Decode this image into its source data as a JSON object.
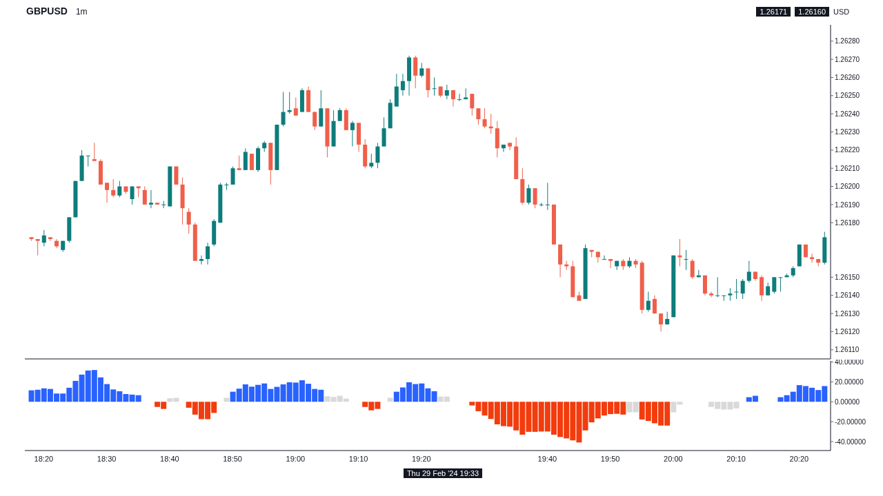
{
  "chart_data": [
    {
      "type": "candlestick",
      "title": "GBPUSD",
      "subtitle": "1m",
      "ylabel": "USD",
      "tick_labels": "y",
      "x": [
        "2024-02-29T18:18",
        "2024-02-29T18:19",
        "2024-02-29T18:20",
        "2024-02-29T18:21",
        "2024-02-29T18:22",
        "2024-02-29T18:23",
        "2024-02-29T18:24",
        "2024-02-29T18:25",
        "2024-02-29T18:26",
        "2024-02-29T18:27",
        "2024-02-29T18:28",
        "2024-02-29T18:29",
        "2024-02-29T18:30",
        "2024-02-29T18:31",
        "2024-02-29T18:32",
        "2024-02-29T18:33",
        "2024-02-29T18:34",
        "2024-02-29T18:35",
        "2024-02-29T18:36",
        "2024-02-29T18:37",
        "2024-02-29T18:38",
        "2024-02-29T18:39",
        "2024-02-29T18:40",
        "2024-02-29T18:41",
        "2024-02-29T18:42",
        "2024-02-29T18:43",
        "2024-02-29T18:44",
        "2024-02-29T18:45",
        "2024-02-29T18:46",
        "2024-02-29T18:47",
        "2024-02-29T18:48",
        "2024-02-29T18:49",
        "2024-02-29T18:50",
        "2024-02-29T18:51",
        "2024-02-29T18:52",
        "2024-02-29T18:53",
        "2024-02-29T18:54",
        "2024-02-29T18:55",
        "2024-02-29T18:56",
        "2024-02-29T18:57",
        "2024-02-29T18:58",
        "2024-02-29T18:59",
        "2024-02-29T19:00",
        "2024-02-29T19:01",
        "2024-02-29T19:02",
        "2024-02-29T19:03",
        "2024-02-29T19:04",
        "2024-02-29T19:05",
        "2024-02-29T19:06",
        "2024-02-29T19:07",
        "2024-02-29T19:08",
        "2024-02-29T19:09",
        "2024-02-29T19:10",
        "2024-02-29T19:11",
        "2024-02-29T19:12",
        "2024-02-29T19:13",
        "2024-02-29T19:14",
        "2024-02-29T19:15",
        "2024-02-29T19:16",
        "2024-02-29T19:17",
        "2024-02-29T19:18",
        "2024-02-29T19:19",
        "2024-02-29T19:20",
        "2024-02-29T19:21",
        "2024-02-29T19:22",
        "2024-02-29T19:23",
        "2024-02-29T19:24",
        "2024-02-29T19:25",
        "2024-02-29T19:26",
        "2024-02-29T19:27",
        "2024-02-29T19:28",
        "2024-02-29T19:29",
        "2024-02-29T19:30",
        "2024-02-29T19:31",
        "2024-02-29T19:32",
        "2024-02-29T19:33",
        "2024-02-29T19:34",
        "2024-02-29T19:35",
        "2024-02-29T19:36",
        "2024-02-29T19:37",
        "2024-02-29T19:38",
        "2024-02-29T19:39",
        "2024-02-29T19:40",
        "2024-02-29T19:41",
        "2024-02-29T19:42",
        "2024-02-29T19:43",
        "2024-02-29T19:44",
        "2024-02-29T19:45",
        "2024-02-29T19:46",
        "2024-02-29T19:47",
        "2024-02-29T19:48",
        "2024-02-29T19:49",
        "2024-02-29T19:50",
        "2024-02-29T19:51",
        "2024-02-29T19:52",
        "2024-02-29T19:53",
        "2024-02-29T19:54",
        "2024-02-29T19:55",
        "2024-02-29T19:56",
        "2024-02-29T19:57",
        "2024-02-29T19:58",
        "2024-02-29T19:59",
        "2024-02-29T20:00",
        "2024-02-29T20:01",
        "2024-02-29T20:02",
        "2024-02-29T20:03",
        "2024-02-29T20:04",
        "2024-02-29T20:05",
        "2024-02-29T20:06",
        "2024-02-29T20:07",
        "2024-02-29T20:08",
        "2024-02-29T20:09",
        "2024-02-29T20:10",
        "2024-02-29T20:11",
        "2024-02-29T20:12",
        "2024-02-29T20:13",
        "2024-02-29T20:14",
        "2024-02-29T20:15",
        "2024-02-29T20:16",
        "2024-02-29T20:17",
        "2024-02-29T20:18",
        "2024-02-29T20:19",
        "2024-02-29T20:20",
        "2024-02-29T20:21",
        "2024-02-29T20:22",
        "2024-02-29T20:23",
        "2024-02-29T20:24"
      ],
      "ohlc": [
        [
          1.26172,
          1.26172,
          1.2617,
          1.26171
        ],
        [
          1.26171,
          1.26171,
          1.26162,
          1.2617
        ],
        [
          1.26169,
          1.26176,
          1.26167,
          1.26173
        ],
        [
          1.26172,
          1.26172,
          1.2617,
          1.26171
        ],
        [
          1.2617,
          1.26171,
          1.26166,
          1.26167
        ],
        [
          1.26165,
          1.2617,
          1.26164,
          1.2617
        ],
        [
          1.2617,
          1.26183,
          1.26169,
          1.26183
        ],
        [
          1.26183,
          1.26203,
          1.26183,
          1.26203
        ],
        [
          1.26203,
          1.2622,
          1.26203,
          1.26217
        ],
        [
          1.26217,
          1.26217,
          1.26211,
          1.26217
        ],
        [
          1.26215,
          1.26224,
          1.26214,
          1.26214
        ],
        [
          1.26214,
          1.26215,
          1.26201,
          1.26201
        ],
        [
          1.26202,
          1.26202,
          1.26191,
          1.26198
        ],
        [
          1.26198,
          1.26204,
          1.26194,
          1.26195
        ],
        [
          1.26195,
          1.26203,
          1.26194,
          1.262
        ],
        [
          1.262,
          1.262,
          1.26196,
          1.26197
        ],
        [
          1.26193,
          1.262,
          1.2619,
          1.262
        ],
        [
          1.262,
          1.262,
          1.26194,
          1.26199
        ],
        [
          1.26198,
          1.262,
          1.2619,
          1.2619
        ],
        [
          1.2619,
          1.26198,
          1.26188,
          1.26191
        ],
        [
          1.26191,
          1.26191,
          1.2619,
          1.2619
        ],
        [
          1.2619,
          1.26192,
          1.26188,
          1.2619
        ],
        [
          1.26189,
          1.26211,
          1.26189,
          1.26211
        ],
        [
          1.26211,
          1.26211,
          1.26201,
          1.26201
        ],
        [
          1.26201,
          1.26205,
          1.26179,
          1.26188
        ],
        [
          1.26186,
          1.26188,
          1.26174,
          1.26179
        ],
        [
          1.26179,
          1.2618,
          1.26159,
          1.26159
        ],
        [
          1.26159,
          1.26162,
          1.26157,
          1.2616
        ],
        [
          1.2616,
          1.26169,
          1.26157,
          1.26167
        ],
        [
          1.26168,
          1.26182,
          1.26167,
          1.26181
        ],
        [
          1.2618,
          1.26202,
          1.2618,
          1.26201
        ],
        [
          1.26201,
          1.26202,
          1.26198,
          1.26201
        ],
        [
          1.26201,
          1.26211,
          1.26201,
          1.2621
        ],
        [
          1.2621,
          1.26217,
          1.26209,
          1.26209
        ],
        [
          1.26209,
          1.26221,
          1.26209,
          1.26219
        ],
        [
          1.26218,
          1.26218,
          1.26209,
          1.26209
        ],
        [
          1.26209,
          1.26222,
          1.26208,
          1.26221
        ],
        [
          1.26221,
          1.26225,
          1.26219,
          1.26224
        ],
        [
          1.26224,
          1.26224,
          1.26201,
          1.26209
        ],
        [
          1.26209,
          1.26234,
          1.26209,
          1.26234
        ],
        [
          1.26234,
          1.26252,
          1.26233,
          1.26241
        ],
        [
          1.26241,
          1.26252,
          1.2624,
          1.26242
        ],
        [
          1.26243,
          1.26249,
          1.26239,
          1.26239
        ],
        [
          1.26241,
          1.26254,
          1.26241,
          1.26253
        ],
        [
          1.26253,
          1.26255,
          1.26241,
          1.26241
        ],
        [
          1.26241,
          1.26241,
          1.26231,
          1.26233
        ],
        [
          1.26233,
          1.26253,
          1.26233,
          1.26243
        ],
        [
          1.26243,
          1.26243,
          1.26216,
          1.26222
        ],
        [
          1.26222,
          1.26242,
          1.26222,
          1.26236
        ],
        [
          1.26236,
          1.26243,
          1.26236,
          1.26242
        ],
        [
          1.26242,
          1.26243,
          1.26231,
          1.26231
        ],
        [
          1.26231,
          1.26236,
          1.26222,
          1.26235
        ],
        [
          1.26235,
          1.26235,
          1.26219,
          1.26223
        ],
        [
          1.26223,
          1.26226,
          1.2621,
          1.26211
        ],
        [
          1.26211,
          1.26218,
          1.2621,
          1.26213
        ],
        [
          1.26213,
          1.26224,
          1.2621,
          1.26222
        ],
        [
          1.26222,
          1.26238,
          1.26222,
          1.26232
        ],
        [
          1.26232,
          1.26248,
          1.26232,
          1.26246
        ],
        [
          1.26244,
          1.26262,
          1.26244,
          1.26255
        ],
        [
          1.26253,
          1.26262,
          1.2625,
          1.26258
        ],
        [
          1.26258,
          1.26272,
          1.2625,
          1.26271
        ],
        [
          1.26271,
          1.26272,
          1.26254,
          1.26261
        ],
        [
          1.26261,
          1.26268,
          1.2626,
          1.26265
        ],
        [
          1.26265,
          1.26265,
          1.26249,
          1.26253
        ],
        [
          1.26254,
          1.2626,
          1.2625,
          1.26254
        ],
        [
          1.26255,
          1.26255,
          1.26249,
          1.2625
        ],
        [
          1.2625,
          1.26256,
          1.26248,
          1.26253
        ],
        [
          1.26253,
          1.26253,
          1.26244,
          1.26248
        ],
        [
          1.26248,
          1.26251,
          1.26247,
          1.26248
        ],
        [
          1.26248,
          1.26254,
          1.26248,
          1.26249
        ],
        [
          1.26251,
          1.26251,
          1.26239,
          1.26243
        ],
        [
          1.26243,
          1.26243,
          1.26234,
          1.26237
        ],
        [
          1.26237,
          1.26243,
          1.26232,
          1.26233
        ],
        [
          1.26233,
          1.2624,
          1.26229,
          1.26232
        ],
        [
          1.26232,
          1.26236,
          1.26216,
          1.26221
        ],
        [
          1.26221,
          1.26223,
          1.26219,
          1.26223
        ],
        [
          1.26224,
          1.26224,
          1.2622,
          1.26222
        ],
        [
          1.26222,
          1.26227,
          1.26204,
          1.26204
        ],
        [
          1.26204,
          1.2621,
          1.2619,
          1.26191
        ],
        [
          1.26191,
          1.26201,
          1.2619,
          1.26199
        ],
        [
          1.26199,
          1.26199,
          1.26188,
          1.2619
        ],
        [
          1.2619,
          1.26191,
          1.26189,
          1.2619
        ],
        [
          1.2619,
          1.26202,
          1.26187,
          1.2619
        ],
        [
          1.2619,
          1.2619,
          1.26168,
          1.26168
        ],
        [
          1.26168,
          1.26168,
          1.2615,
          1.26157
        ],
        [
          1.26157,
          1.26159,
          1.26154,
          1.26156
        ],
        [
          1.26156,
          1.26159,
          1.26139,
          1.26139
        ],
        [
          1.2614,
          1.26142,
          1.26137,
          1.26137
        ],
        [
          1.26138,
          1.26168,
          1.26138,
          1.26166
        ],
        [
          1.26165,
          1.26165,
          1.26161,
          1.26164
        ],
        [
          1.26164,
          1.26164,
          1.26158,
          1.26161
        ],
        [
          1.2616,
          1.26162,
          1.2616,
          1.2616
        ],
        [
          1.2616,
          1.2616,
          1.26155,
          1.26159
        ],
        [
          1.26156,
          1.26159,
          1.26154,
          1.26159
        ],
        [
          1.26159,
          1.2616,
          1.26154,
          1.26156
        ],
        [
          1.26156,
          1.26161,
          1.26155,
          1.26159
        ],
        [
          1.26159,
          1.2616,
          1.26155,
          1.26157
        ],
        [
          1.26158,
          1.26159,
          1.2613,
          1.26132
        ],
        [
          1.26132,
          1.26142,
          1.26131,
          1.26137
        ],
        [
          1.26138,
          1.2614,
          1.2613,
          1.2613
        ],
        [
          1.2613,
          1.2613,
          1.2612,
          1.26124
        ],
        [
          1.26124,
          1.26131,
          1.26124,
          1.26127
        ],
        [
          1.26128,
          1.26162,
          1.26128,
          1.26162
        ],
        [
          1.26162,
          1.26171,
          1.26156,
          1.26161
        ],
        [
          1.2616,
          1.26165,
          1.26154,
          1.2616
        ],
        [
          1.26159,
          1.2616,
          1.26149,
          1.2615
        ],
        [
          1.2615,
          1.26154,
          1.2615,
          1.26151
        ],
        [
          1.26151,
          1.26151,
          1.2614,
          1.26141
        ],
        [
          1.26141,
          1.26142,
          1.26139,
          1.2614
        ],
        [
          1.2614,
          1.2615,
          1.26139,
          1.2614
        ],
        [
          1.2614,
          1.2614,
          1.26137,
          1.2614
        ],
        [
          1.2614,
          1.26144,
          1.26137,
          1.26141
        ],
        [
          1.26142,
          1.26149,
          1.26138,
          1.26142
        ],
        [
          1.26141,
          1.26149,
          1.26138,
          1.26148
        ],
        [
          1.26148,
          1.26159,
          1.26147,
          1.26153
        ],
        [
          1.26153,
          1.26153,
          1.26148,
          1.26149
        ],
        [
          1.2615,
          1.26151,
          1.26137,
          1.2614
        ],
        [
          1.2614,
          1.26147,
          1.2614,
          1.26145
        ],
        [
          1.26142,
          1.2615,
          1.26141,
          1.2615
        ],
        [
          1.2615,
          1.2615,
          1.26142,
          1.2615
        ],
        [
          1.2615,
          1.26152,
          1.2615,
          1.26151
        ],
        [
          1.26151,
          1.26156,
          1.2615,
          1.26155
        ],
        [
          1.26156,
          1.26168,
          1.26156,
          1.26168
        ],
        [
          1.26168,
          1.26168,
          1.26161,
          1.26161
        ],
        [
          1.26161,
          1.26163,
          1.26158,
          1.2616
        ],
        [
          1.2616,
          1.2616,
          1.26156,
          1.26158
        ],
        [
          1.26158,
          1.26175,
          1.26157,
          1.26172
        ]
      ],
      "colors": [
        "#ef5f4a",
        "#ef5f4a",
        "#0e7c7b",
        "#ef5f4a",
        "#ef5f4a",
        "#0e7c7b",
        "#0e7c7b",
        "#0e7c7b",
        "#0e7c7b",
        "#0e7c7b",
        "#ef5f4a",
        "#ef5f4a",
        "#ef5f4a",
        "#ef5f4a",
        "#0e7c7b",
        "#ef5f4a",
        "#0e7c7b",
        "#ef5f4a",
        "#ef5f4a",
        "#0e7c7b",
        "#ef5f4a",
        "#0e7c7b",
        "#0e7c7b",
        "#ef5f4a",
        "#ef5f4a",
        "#ef5f4a",
        "#ef5f4a",
        "#0e7c7b",
        "#0e7c7b",
        "#0e7c7b",
        "#0e7c7b",
        "#0e7c7b",
        "#0e7c7b",
        "#ef5f4a",
        "#0e7c7b",
        "#ef5f4a",
        "#0e7c7b",
        "#0e7c7b",
        "#ef5f4a",
        "#0e7c7b",
        "#0e7c7b",
        "#0e7c7b",
        "#ef5f4a",
        "#0e7c7b",
        "#ef5f4a",
        "#ef5f4a",
        "#0e7c7b",
        "#ef5f4a",
        "#0e7c7b",
        "#0e7c7b",
        "#ef5f4a",
        "#0e7c7b",
        "#ef5f4a",
        "#ef5f4a",
        "#0e7c7b",
        "#0e7c7b",
        "#0e7c7b",
        "#0e7c7b",
        "#0e7c7b",
        "#0e7c7b",
        "#0e7c7b",
        "#ef5f4a",
        "#0e7c7b",
        "#ef5f4a",
        "#0e7c7b",
        "#ef5f4a",
        "#0e7c7b",
        "#ef5f4a",
        "#0e7c7b",
        "#0e7c7b",
        "#ef5f4a",
        "#ef5f4a",
        "#ef5f4a",
        "#ef5f4a",
        "#ef5f4a",
        "#0e7c7b",
        "#ef5f4a",
        "#ef5f4a",
        "#ef5f4a",
        "#0e7c7b",
        "#ef5f4a",
        "#0e7c7b",
        "#0e7c7b",
        "#ef5f4a",
        "#ef5f4a",
        "#ef5f4a",
        "#ef5f4a",
        "#ef5f4a",
        "#0e7c7b",
        "#ef5f4a",
        "#ef5f4a",
        "#0e7c7b",
        "#ef5f4a",
        "#0e7c7b",
        "#ef5f4a",
        "#0e7c7b",
        "#ef5f4a",
        "#ef5f4a",
        "#0e7c7b",
        "#ef5f4a",
        "#ef5f4a",
        "#0e7c7b",
        "#0e7c7b",
        "#ef5f4a",
        "#0e7c7b",
        "#ef5f4a",
        "#0e7c7b",
        "#ef5f4a",
        "#ef5f4a",
        "#0e7c7b",
        "#0e7c7b",
        "#0e7c7b",
        "#0e7c7b",
        "#0e7c7b",
        "#0e7c7b",
        "#ef5f4a",
        "#ef5f4a",
        "#0e7c7b",
        "#0e7c7b",
        "#0e7c7b",
        "#0e7c7b",
        "#0e7c7b",
        "#0e7c7b",
        "#ef5f4a",
        "#ef5f4a",
        "#ef5f4a",
        "#0e7c7b"
      ],
      "xlim": [
        "2024-02-29T18:17",
        "2024-02-29T20:25"
      ],
      "ylim": [
        1.26105,
        1.26289
      ],
      "yticks": [
        {
          "value": 1.2611,
          "label": "1.26110"
        },
        {
          "value": 1.2612,
          "label": "1.26120"
        },
        {
          "value": 1.2613,
          "label": "1.26130"
        },
        {
          "value": 1.2614,
          "label": "1.26140"
        },
        {
          "value": 1.2615,
          "label": "1.26150"
        },
        {
          "value": 1.2618,
          "label": "1.26180"
        },
        {
          "value": 1.2619,
          "label": "1.26190"
        },
        {
          "value": 1.262,
          "label": "1.26200"
        },
        {
          "value": 1.2621,
          "label": "1.26210"
        },
        {
          "value": 1.2622,
          "label": "1.26220"
        },
        {
          "value": 1.2623,
          "label": "1.26230"
        },
        {
          "value": 1.2624,
          "label": "1.26240"
        },
        {
          "value": 1.2625,
          "label": "1.26250"
        },
        {
          "value": 1.2626,
          "label": "1.26260"
        },
        {
          "value": 1.2627,
          "label": "1.26270"
        },
        {
          "value": 1.2628,
          "label": "1.26280"
        }
      ],
      "annotations": [
        "1.26171",
        "1.26160"
      ]
    },
    {
      "type": "bar",
      "x": [
        "2024-02-29T18:18",
        "2024-02-29T18:19",
        "2024-02-29T18:20",
        "2024-02-29T18:21",
        "2024-02-29T18:22",
        "2024-02-29T18:23",
        "2024-02-29T18:24",
        "2024-02-29T18:25",
        "2024-02-29T18:26",
        "2024-02-29T18:27",
        "2024-02-29T18:28",
        "2024-02-29T18:29",
        "2024-02-29T18:30",
        "2024-02-29T18:31",
        "2024-02-29T18:32",
        "2024-02-29T18:33",
        "2024-02-29T18:34",
        "2024-02-29T18:35",
        "2024-02-29T18:36",
        "2024-02-29T18:37",
        "2024-02-29T18:38",
        "2024-02-29T18:39",
        "2024-02-29T18:40",
        "2024-02-29T18:41",
        "2024-02-29T18:42",
        "2024-02-29T18:43",
        "2024-02-29T18:44",
        "2024-02-29T18:45",
        "2024-02-29T18:46",
        "2024-02-29T18:47",
        "2024-02-29T18:48",
        "2024-02-29T18:49",
        "2024-02-29T18:50",
        "2024-02-29T18:51",
        "2024-02-29T18:52",
        "2024-02-29T18:53",
        "2024-02-29T18:54",
        "2024-02-29T18:55",
        "2024-02-29T18:56",
        "2024-02-29T18:57",
        "2024-02-29T18:58",
        "2024-02-29T18:59",
        "2024-02-29T19:00",
        "2024-02-29T19:01",
        "2024-02-29T19:02",
        "2024-02-29T19:03",
        "2024-02-29T19:04",
        "2024-02-29T19:05",
        "2024-02-29T19:06",
        "2024-02-29T19:07",
        "2024-02-29T19:08",
        "2024-02-29T19:09",
        "2024-02-29T19:10",
        "2024-02-29T19:11",
        "2024-02-29T19:12",
        "2024-02-29T19:13",
        "2024-02-29T19:14",
        "2024-02-29T19:15",
        "2024-02-29T19:16",
        "2024-02-29T19:17",
        "2024-02-29T19:18",
        "2024-02-29T19:19",
        "2024-02-29T19:20",
        "2024-02-29T19:21",
        "2024-02-29T19:22",
        "2024-02-29T19:23",
        "2024-02-29T19:24",
        "2024-02-29T19:25",
        "2024-02-29T19:26",
        "2024-02-29T19:27",
        "2024-02-29T19:28",
        "2024-02-29T19:29",
        "2024-02-29T19:30",
        "2024-02-29T19:31",
        "2024-02-29T19:32",
        "2024-02-29T19:33",
        "2024-02-29T19:34",
        "2024-02-29T19:35",
        "2024-02-29T19:36",
        "2024-02-29T19:37",
        "2024-02-29T19:38",
        "2024-02-29T19:39",
        "2024-02-29T19:40",
        "2024-02-29T19:41",
        "2024-02-29T19:42",
        "2024-02-29T19:43",
        "2024-02-29T19:44",
        "2024-02-29T19:45",
        "2024-02-29T19:46",
        "2024-02-29T19:47",
        "2024-02-29T19:48",
        "2024-02-29T19:49",
        "2024-02-29T19:50",
        "2024-02-29T19:51",
        "2024-02-29T19:52",
        "2024-02-29T19:53",
        "2024-02-29T19:54",
        "2024-02-29T19:55",
        "2024-02-29T19:56",
        "2024-02-29T19:57",
        "2024-02-29T19:58",
        "2024-02-29T19:59",
        "2024-02-29T20:00",
        "2024-02-29T20:01",
        "2024-02-29T20:02",
        "2024-02-29T20:03",
        "2024-02-29T20:04",
        "2024-02-29T20:05",
        "2024-02-29T20:06",
        "2024-02-29T20:07",
        "2024-02-29T20:08",
        "2024-02-29T20:09",
        "2024-02-29T20:10",
        "2024-02-29T20:11",
        "2024-02-29T20:12",
        "2024-02-29T20:13",
        "2024-02-29T20:14",
        "2024-02-29T20:15",
        "2024-02-29T20:16",
        "2024-02-29T20:17",
        "2024-02-29T20:18",
        "2024-02-29T20:19",
        "2024-02-29T20:20",
        "2024-02-29T20:21",
        "2024-02-29T20:22",
        "2024-02-29T20:23",
        "2024-02-29T20:24"
      ],
      "values": [
        11.5,
        12.1,
        13.5,
        12.9,
        8.3,
        8.3,
        14.1,
        21,
        27.3,
        31.4,
        31.9,
        24.5,
        17.8,
        12.4,
        10.6,
        7.8,
        7.2,
        6.6,
        null,
        null,
        -5.2,
        -7.2,
        3.5,
        4,
        null,
        -6,
        -12.9,
        -17.5,
        -17.5,
        -11.2,
        null,
        4,
        10.1,
        13.2,
        17.5,
        15.2,
        17,
        18.4,
        12.9,
        15,
        17.5,
        19.6,
        19.3,
        21.6,
        18.1,
        12.9,
        12.1,
        5.5,
        4.9,
        6,
        3.2,
        null,
        null,
        -5.2,
        -8.6,
        -7.2,
        null,
        4,
        10.1,
        14.4,
        19.6,
        17.8,
        18.4,
        13.5,
        10.6,
        5.2,
        5.2,
        null,
        null,
        null,
        -3.7,
        -9.5,
        -13.8,
        -17.3,
        -22.7,
        -24.5,
        -25,
        -28.8,
        -33.1,
        -30.2,
        -30.2,
        -29.9,
        -29.9,
        -33.1,
        -35.4,
        -36.8,
        -38.8,
        -40.9,
        -28.8,
        -20.7,
        -16.7,
        -13.8,
        -12.4,
        -12.1,
        -12.9,
        -10.6,
        -10.6,
        -17.8,
        -19.3,
        -21.6,
        -23.9,
        -23.9,
        -10.6,
        -2.9,
        null,
        null,
        null,
        null,
        -5.2,
        -7.2,
        -7.8,
        -7.8,
        -6.6,
        null,
        4.6,
        6,
        null,
        null,
        null,
        4.6,
        6.6,
        10.1,
        16.7,
        15.8,
        14.1,
        11.8,
        15.8
      ],
      "colors": [
        "#2962ff",
        "#2962ff",
        "#2962ff",
        "#2962ff",
        "#2962ff",
        "#2962ff",
        "#2962ff",
        "#2962ff",
        "#2962ff",
        "#2962ff",
        "#2962ff",
        "#2962ff",
        "#2962ff",
        "#2962ff",
        "#2962ff",
        "#2962ff",
        "#2962ff",
        "#2962ff",
        null,
        null,
        "#f23c0d",
        "#f23c0d",
        "#d9d9d9",
        "#d9d9d9",
        null,
        "#f23c0d",
        "#f23c0d",
        "#f23c0d",
        "#f23c0d",
        "#f23c0d",
        null,
        "#d9d9d9",
        "#2962ff",
        "#2962ff",
        "#2962ff",
        "#2962ff",
        "#2962ff",
        "#2962ff",
        "#2962ff",
        "#2962ff",
        "#2962ff",
        "#2962ff",
        "#2962ff",
        "#2962ff",
        "#2962ff",
        "#2962ff",
        "#2962ff",
        "#d9d9d9",
        "#d9d9d9",
        "#d9d9d9",
        "#d9d9d9",
        null,
        null,
        "#f23c0d",
        "#f23c0d",
        "#f23c0d",
        null,
        "#d9d9d9",
        "#2962ff",
        "#2962ff",
        "#2962ff",
        "#2962ff",
        "#2962ff",
        "#2962ff",
        "#2962ff",
        "#d9d9d9",
        "#d9d9d9",
        null,
        null,
        null,
        "#f23c0d",
        "#f23c0d",
        "#f23c0d",
        "#f23c0d",
        "#f23c0d",
        "#f23c0d",
        "#f23c0d",
        "#f23c0d",
        "#f23c0d",
        "#f23c0d",
        "#f23c0d",
        "#f23c0d",
        "#f23c0d",
        "#f23c0d",
        "#f23c0d",
        "#f23c0d",
        "#f23c0d",
        "#f23c0d",
        "#f23c0d",
        "#f23c0d",
        "#f23c0d",
        "#f23c0d",
        "#f23c0d",
        "#f23c0d",
        "#f23c0d",
        "#d9d9d9",
        "#d9d9d9",
        "#f23c0d",
        "#f23c0d",
        "#f23c0d",
        "#f23c0d",
        "#f23c0d",
        "#d9d9d9",
        "#d9d9d9",
        null,
        null,
        null,
        null,
        "#d9d9d9",
        "#d9d9d9",
        "#d9d9d9",
        "#d9d9d9",
        "#d9d9d9",
        null,
        "#2962ff",
        "#2962ff",
        null,
        null,
        null,
        "#2962ff",
        "#2962ff",
        "#2962ff",
        "#2962ff",
        "#2962ff",
        "#2962ff",
        "#2962ff",
        "#2962ff"
      ],
      "xlim": [
        "2024-02-29T18:17",
        "2024-02-29T20:25"
      ],
      "xticks": [
        {
          "value": "2024-02-29T18:20",
          "label": "18:20"
        },
        {
          "value": "2024-02-29T18:30",
          "label": "18:30"
        },
        {
          "value": "2024-02-29T18:40",
          "label": "18:40"
        },
        {
          "value": "2024-02-29T18:50",
          "label": "18:50"
        },
        {
          "value": "2024-02-29T19:00",
          "label": "19:00"
        },
        {
          "value": "2024-02-29T19:10",
          "label": "19:10"
        },
        {
          "value": "2024-02-29T19:20",
          "label": "19:20"
        },
        {
          "value": "2024-02-29T19:40",
          "label": "19:40"
        },
        {
          "value": "2024-02-29T19:50",
          "label": "19:50"
        },
        {
          "value": "2024-02-29T20:00",
          "label": "20:00"
        },
        {
          "value": "2024-02-29T20:10",
          "label": "20:10"
        },
        {
          "value": "2024-02-29T20:20",
          "label": "20:20"
        }
      ],
      "ylim": [
        -49,
        41
      ],
      "yticks": [
        {
          "value": -40,
          "label": "-40.00000"
        },
        {
          "value": -20,
          "label": "-20.00000"
        },
        {
          "value": 0,
          "label": "0.00000"
        },
        {
          "value": 20,
          "label": "20.00000"
        },
        {
          "value": 40,
          "label": "40.00000"
        }
      ],
      "annotations": [
        "Thu 29 Feb '24 19:33"
      ]
    }
  ]
}
